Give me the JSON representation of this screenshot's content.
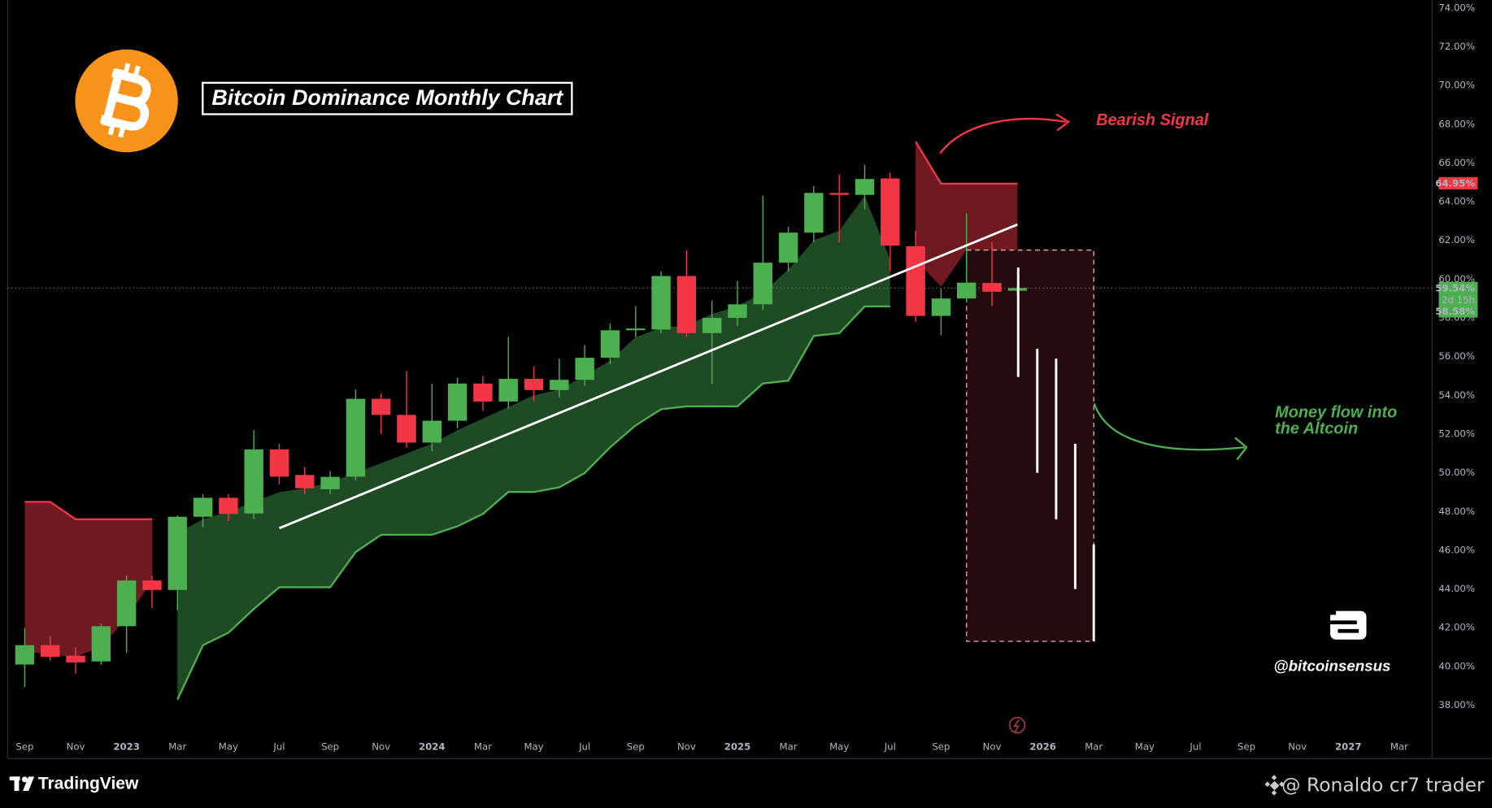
{
  "chart_data": {
    "type": "candlestick",
    "title": "Bitcoin Dominance Monthly Chart",
    "categories": [
      "Sep",
      null,
      "Nov",
      null,
      "2023",
      null,
      "Mar",
      null,
      "May",
      null,
      "Jul",
      null,
      "Sep",
      null,
      "Nov",
      null,
      "2024",
      null,
      "Mar",
      null,
      "May",
      null,
      "Jul",
      null,
      "Sep",
      null,
      "Nov",
      null,
      "2025",
      null,
      "Mar",
      null,
      "May",
      null,
      "Jul",
      null,
      "Sep",
      null,
      "Nov",
      null,
      "2026",
      null,
      "Mar",
      null,
      "May",
      null,
      "Jul",
      null,
      "Sep",
      null,
      "Nov",
      null,
      "2027",
      null,
      "Mar"
    ],
    "open": [
      40.1,
      41.1,
      40.56,
      40.26,
      42.08,
      44.44,
      43.95,
      47.73,
      48.71,
      47.9,
      51.21,
      49.89,
      49.15,
      49.8,
      53.82,
      52.99,
      51.56,
      52.69,
      54.61,
      53.68,
      54.85,
      54.27,
      54.8,
      55.94,
      57.36,
      57.4,
      60.16,
      57.21,
      58.0,
      58.7,
      60.85,
      62.4,
      64.45,
      64.35,
      65.2,
      61.7,
      58.1,
      59.0,
      59.8,
      59.4,
      null,
      null,
      null,
      null,
      null,
      null,
      null,
      null,
      null,
      null,
      null,
      null,
      null,
      null,
      null
    ],
    "high": [
      41.98,
      41.6,
      41.0,
      42.2,
      44.7,
      44.7,
      47.8,
      48.9,
      48.9,
      52.2,
      51.5,
      50.3,
      50.1,
      54.3,
      54.1,
      55.25,
      54.6,
      54.9,
      55.0,
      57.02,
      55.5,
      55.9,
      56.6,
      57.7,
      58.6,
      60.4,
      61.49,
      58.9,
      59.9,
      64.3,
      62.7,
      64.8,
      65.4,
      65.9,
      65.5,
      62.5,
      59.5,
      63.4,
      61.9,
      59.6,
      null,
      null,
      null,
      null,
      null,
      null,
      null,
      null,
      null,
      null,
      null,
      null,
      null,
      null,
      null
    ],
    "low": [
      38.93,
      40.3,
      39.62,
      40.1,
      40.7,
      43.0,
      42.9,
      47.2,
      47.5,
      47.6,
      49.4,
      48.9,
      48.9,
      49.6,
      52.0,
      51.3,
      51.1,
      52.3,
      53.2,
      53.3,
      53.7,
      53.9,
      54.5,
      55.6,
      57.0,
      57.2,
      57.0,
      54.56,
      57.6,
      58.4,
      60.4,
      61.9,
      61.9,
      63.6,
      60.4,
      57.8,
      57.1,
      58.8,
      58.6,
      59.2,
      null,
      null,
      null,
      null,
      null,
      null,
      null,
      null,
      null,
      null,
      null,
      null,
      null,
      null,
      null
    ],
    "close": [
      41.1,
      40.5,
      40.21,
      42.08,
      44.44,
      43.95,
      47.73,
      48.71,
      47.88,
      51.21,
      49.8,
      49.2,
      49.79,
      53.82,
      52.99,
      51.56,
      52.69,
      54.61,
      53.68,
      54.85,
      54.27,
      54.8,
      55.94,
      57.36,
      57.45,
      60.16,
      57.21,
      58.0,
      58.7,
      60.85,
      62.4,
      64.45,
      64.35,
      65.17,
      61.73,
      58.1,
      59.0,
      59.82,
      59.35,
      59.54,
      null,
      null,
      null,
      null,
      null,
      null,
      null,
      null,
      null,
      null,
      null,
      null,
      null,
      null,
      null
    ],
    "up_color": "#4caf50",
    "down_color": "#f23645",
    "clouds": [
      {
        "color": "#4caf50",
        "fill": "#1f4b24",
        "edge": "lower",
        "upper": [
          null,
          null,
          null,
          null,
          null,
          null,
          46.9,
          47.6,
          48.0,
          48.5,
          49.0,
          49.2,
          49.5,
          50.0,
          50.5,
          51.0,
          51.5,
          52.2,
          52.8,
          53.4,
          54.0,
          54.3,
          55.0,
          55.8,
          57.0,
          57.5,
          57.6,
          58.2,
          58.6,
          59.3,
          60.5,
          62.0,
          62.5,
          64.3,
          61.0,
          null,
          null,
          null,
          null,
          null,
          null,
          null,
          null,
          null,
          null,
          null,
          null,
          null,
          null,
          null,
          null,
          null,
          null,
          null,
          null
        ],
        "lower": [
          null,
          null,
          null,
          null,
          null,
          null,
          38.29,
          41.1,
          41.74,
          42.97,
          44.09,
          44.09,
          44.09,
          45.91,
          46.8,
          46.8,
          46.8,
          47.24,
          47.88,
          49.01,
          49.01,
          49.25,
          49.99,
          51.32,
          52.45,
          53.28,
          53.43,
          53.43,
          53.43,
          54.61,
          54.76,
          57.07,
          57.21,
          58.59,
          58.59,
          null,
          null,
          null,
          null,
          null,
          null,
          null,
          null,
          null,
          null,
          null,
          null,
          null,
          null,
          null,
          null,
          null,
          null,
          null,
          null
        ]
      },
      {
        "color": "#f23645",
        "fill": "#6e1a20",
        "edge": "upper",
        "upper": [
          48.5,
          48.5,
          47.6,
          47.6,
          47.6,
          47.6,
          null,
          null,
          null,
          null,
          null,
          null,
          null,
          null,
          null,
          null,
          null,
          null,
          null,
          null,
          null,
          null,
          null,
          null,
          null,
          null,
          null,
          null,
          null,
          null,
          null,
          null,
          null,
          null,
          null,
          67.1,
          64.93,
          64.93,
          64.93,
          64.93,
          null,
          null,
          null,
          null,
          null,
          null,
          null,
          null,
          null,
          null,
          null,
          null,
          null,
          null,
          null
        ],
        "lower": [
          40.8,
          40.6,
          40.5,
          41.0,
          42.5,
          44.4,
          null,
          null,
          null,
          null,
          null,
          null,
          null,
          null,
          null,
          null,
          null,
          null,
          null,
          null,
          null,
          null,
          null,
          null,
          null,
          null,
          null,
          null,
          null,
          null,
          null,
          null,
          null,
          null,
          null,
          61.0,
          59.6,
          61.5,
          61.5,
          61.5,
          null,
          null,
          null,
          null,
          null,
          null,
          null,
          null,
          null,
          null,
          null,
          null,
          null,
          null,
          null
        ]
      }
    ],
    "trendline": {
      "x": [
        10,
        39
      ],
      "values": [
        47.14,
        62.82
      ],
      "color": "#ffffff"
    },
    "projection_box": {
      "x": [
        37,
        42
      ],
      "y": [
        41.3,
        61.5
      ],
      "fill": "#2b0c10",
      "color": "#d9a0a5"
    },
    "projection_bars": {
      "x": [
        39.03,
        39.78,
        40.52,
        41.27,
        42.0
      ],
      "high": [
        60.6,
        56.4,
        55.9,
        51.5,
        46.3
      ],
      "low": [
        54.95,
        50.0,
        47.6,
        44.0,
        41.3
      ],
      "color": "#ffffff"
    },
    "ylim": [
      36.6,
      74.2
    ],
    "yticks": [
      {
        "value": 38,
        "label": "38.00%"
      },
      {
        "value": 40,
        "label": "40.00%"
      },
      {
        "value": 42,
        "label": "42.00%"
      },
      {
        "value": 44,
        "label": "44.00%"
      },
      {
        "value": 46,
        "label": "46.00%"
      },
      {
        "value": 48,
        "label": "48.00%"
      },
      {
        "value": 50,
        "label": "50.00%"
      },
      {
        "value": 52,
        "label": "52.00%"
      },
      {
        "value": 54,
        "label": "54.00%"
      },
      {
        "value": 56,
        "label": "56.00%"
      },
      {
        "value": 58,
        "label": "58.00%"
      },
      {
        "value": 60,
        "label": "60.00%"
      },
      {
        "value": 62,
        "label": "62.00%"
      },
      {
        "value": 64,
        "label": "64.00%"
      },
      {
        "value": 66,
        "label": "66.00%"
      },
      {
        "value": 68,
        "label": "68.00%"
      },
      {
        "value": 70,
        "label": "70.00%"
      },
      {
        "value": 72,
        "label": "72.00%"
      },
      {
        "value": 74,
        "label": "74.00%"
      }
    ],
    "grid": false,
    "price_labels": [
      {
        "value": 64.95,
        "label": "64.95%",
        "color": "#f23645"
      },
      {
        "value": 59.54,
        "label": "59.54%",
        "color": "#4caf50"
      },
      {
        "value": 58.58,
        "label": "58.58%",
        "color": "#4caf50"
      }
    ],
    "countdown": "2d 15h",
    "annotations": [
      {
        "text": "Bearish Signal",
        "color": "#f23645"
      },
      {
        "text": "Money flow into",
        "color": "#4caf50"
      },
      {
        "text": "the Altcoin",
        "color": "#4caf50"
      }
    ]
  },
  "branding": {
    "watermark": "@bitcoinsensus",
    "platform": "TradingView",
    "credit": "@ Ronaldo cr7 trader"
  }
}
